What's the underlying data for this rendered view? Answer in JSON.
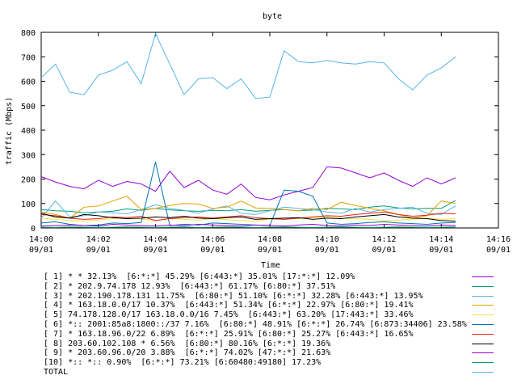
{
  "chart_data": {
    "type": "line",
    "title": "byte",
    "xlabel": "Time",
    "ylabel": "traffic (Mbps)",
    "ylim": [
      0,
      800
    ],
    "yticks": [
      0,
      100,
      200,
      300,
      400,
      500,
      600,
      700,
      800
    ],
    "xlim_minutes": [
      0,
      16
    ],
    "xtick_times": [
      "14:00",
      "14:02",
      "14:04",
      "14:06",
      "14:08",
      "14:10",
      "14:12",
      "14:14",
      "14:16"
    ],
    "xtick_dates": [
      "09/01",
      "09/01",
      "09/01",
      "09/01",
      "09/01",
      "09/01",
      "09/01",
      "09/01",
      "09/01"
    ],
    "x_minutes": [
      0,
      0.5,
      1,
      1.5,
      2,
      2.5,
      3,
      3.5,
      4,
      4.5,
      5,
      5.5,
      6,
      6.5,
      7,
      7.5,
      8,
      8.5,
      9,
      9.5,
      10,
      10.5,
      11,
      11.5,
      12,
      12.5,
      13,
      13.5,
      14,
      14.5
    ],
    "series": [
      {
        "name": "[ 1] * * 32.13%  [6:*:*] 45.29% [6:443:*] 35.01% [17:*:*] 12.09%",
        "color": "#9400d3",
        "values": [
          210,
          188,
          170,
          160,
          195,
          170,
          190,
          180,
          150,
          232,
          165,
          195,
          155,
          138,
          180,
          125,
          115,
          135,
          150,
          165,
          250,
          245,
          225,
          205,
          225,
          195,
          170,
          205,
          180,
          205
        ]
      },
      {
        "name": "[ 2] * 202.9.74.178 12.93%  [6:443:*] 61.17% [6:80:*] 37.51%",
        "color": "#009e73",
        "values": [
          75,
          70,
          68,
          62,
          65,
          68,
          78,
          72,
          80,
          74,
          70,
          68,
          72,
          70,
          75,
          68,
          72,
          75,
          70,
          73,
          80,
          78,
          75,
          85,
          90,
          82,
          78,
          80,
          80,
          112
        ]
      },
      {
        "name": "[ 3] * 202.190.178.131 11.75%  [6:80:*] 51.10% [6:*:*] 32.28% [6:443:*] 13.95%",
        "color": "#56b4e9",
        "values": [
          40,
          110,
          45,
          50,
          65,
          62,
          58,
          75,
          95,
          80,
          72,
          60,
          78,
          90,
          60,
          55,
          70,
          85,
          80,
          75,
          65,
          60,
          80,
          65,
          75,
          80,
          85,
          60,
          55,
          90
        ]
      },
      {
        "name": "[ 4] * 163.18.0.0/17 10.37%  [6:443:*] 51.34% [6:*:*] 22.97% [6:80:*] 19.41%",
        "color": "#e69f00",
        "values": [
          65,
          55,
          40,
          85,
          90,
          110,
          130,
          75,
          80,
          92,
          100,
          98,
          80,
          85,
          110,
          82,
          80,
          75,
          70,
          80,
          75,
          105,
          92,
          80,
          70,
          55,
          40,
          50,
          110,
          100
        ]
      },
      {
        "name": "[ 5] 74.178.128.0/17 163.18.0.0/16 7.45%  [6:443:*] 63.20% [17:443:*] 33.46%",
        "color": "#f0e442",
        "values": [
          40,
          35,
          30,
          28,
          32,
          38,
          42,
          36,
          30,
          40,
          35,
          32,
          38,
          34,
          30,
          28,
          35,
          40,
          38,
          42,
          45,
          40,
          38,
          35,
          30,
          32,
          36,
          40,
          35,
          38
        ]
      },
      {
        "name": "[ 6] *:: 2001:85a8:1800::/37 7.16%  [6:80:*] 48.91% [6:*:*] 26.74% [6:873:34406] 23.58%",
        "color": "#0072b2",
        "values": [
          20,
          25,
          15,
          10,
          12,
          20,
          18,
          22,
          270,
          10,
          15,
          12,
          20,
          18,
          15,
          12,
          10,
          155,
          150,
          130,
          20,
          15,
          18,
          22,
          25,
          20,
          18,
          15,
          20,
          22
        ]
      },
      {
        "name": "[ 7] * 163.18.96.0/22 6.89%  [6:*:*] 25.91% [6:80:*] 25.27% [6:443:*] 16.65%",
        "color": "#e51e10",
        "values": [
          55,
          50,
          40,
          35,
          38,
          45,
          42,
          48,
          30,
          38,
          42,
          45,
          40,
          45,
          50,
          42,
          38,
          35,
          40,
          45,
          50,
          48,
          55,
          60,
          65,
          55,
          48,
          52,
          60,
          58
        ]
      },
      {
        "name": "[ 8] 203.60.102.108 * 6.56%  [6:80:*] 80.16% [6:*:*] 19.36%",
        "color": "#000000",
        "values": [
          60,
          45,
          40,
          55,
          50,
          42,
          38,
          40,
          45,
          42,
          48,
          40,
          38,
          42,
          45,
          35,
          38,
          40,
          42,
          35,
          40,
          38,
          45,
          50,
          55,
          45,
          40,
          38,
          30,
          28
        ]
      },
      {
        "name": "[ 9] * 203.60.96.0/20 3.88%  [6:*:*] 74.02% [47:*:*] 21.63%",
        "color": "#9400d3",
        "values": [
          8,
          10,
          12,
          10,
          8,
          15,
          12,
          10,
          8,
          12,
          10,
          15,
          12,
          10,
          8,
          12,
          10,
          8,
          12,
          15,
          10,
          8,
          12,
          10,
          15,
          12,
          10,
          8,
          12,
          10
        ]
      },
      {
        "name": "[10] *:: *:: 0.90%  [6:*:*] 73.21% [6:60480:49180] 17.23%",
        "color": "#009e73",
        "values": [
          3,
          2,
          4,
          3,
          2,
          3,
          4,
          3,
          2,
          3,
          4,
          2,
          3,
          4,
          3,
          2,
          3,
          4,
          3,
          2,
          3,
          4,
          3,
          2,
          3,
          4,
          3,
          2,
          3,
          4
        ]
      },
      {
        "name": "TOTAL",
        "color": "#56b4e9",
        "values": [
          615,
          670,
          555,
          545,
          625,
          645,
          680,
          590,
          795,
          670,
          545,
          610,
          615,
          570,
          610,
          530,
          535,
          725,
          680,
          675,
          685,
          675,
          670,
          680,
          675,
          610,
          565,
          625,
          655,
          700
        ]
      }
    ]
  }
}
